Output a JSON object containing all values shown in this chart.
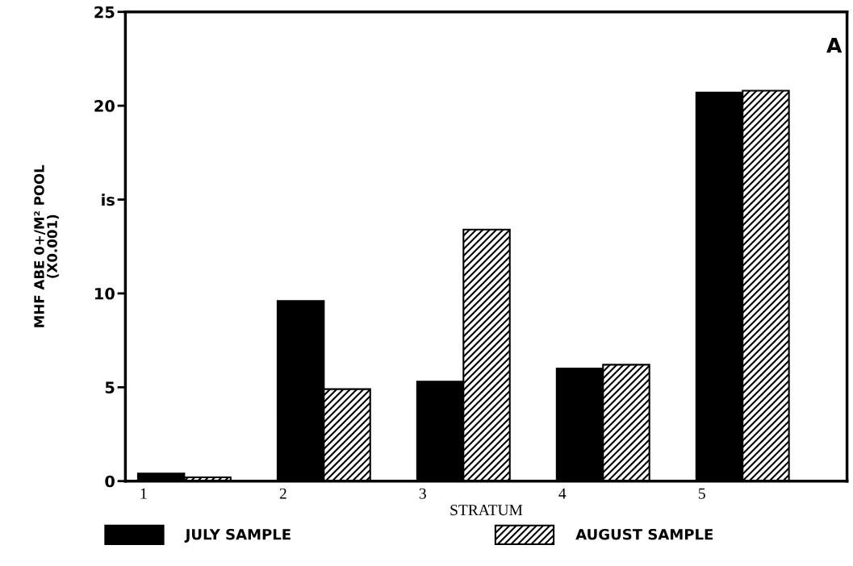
{
  "chart_data": {
    "type": "bar",
    "xlabel": "STRATUM",
    "ylabel": "MHF ABE 0+/M² POOL\n(X0.001)",
    "annotations": [
      "A"
    ],
    "categories": [
      "1",
      "2",
      "3",
      "4",
      "5"
    ],
    "series": [
      {
        "name": "JULY SAMPLE",
        "color": "#000000",
        "values": [
          0.4,
          9.6,
          5.3,
          6.0,
          20.7
        ]
      },
      {
        "name": "AUGUST SAMPLE",
        "color": "#000000",
        "values": [
          0.2,
          4.9,
          13.4,
          6.2,
          20.8
        ]
      }
    ],
    "ylim": [
      0,
      25
    ],
    "yticks": [
      0,
      5,
      10,
      {
        "value": 15,
        "label": "is"
      },
      20,
      25
    ],
    "legend": "bottom",
    "grid": false
  }
}
